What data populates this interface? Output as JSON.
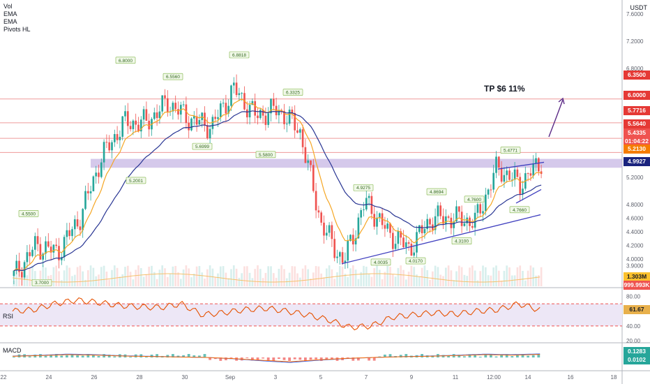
{
  "legend": [
    "Vol",
    "EMA",
    "EMA",
    "Pivots HL"
  ],
  "currency": "USDT",
  "annotation": "TP $6 11%",
  "price_axis": [
    "7.6000",
    "7.2000",
    "6.8000",
    "6.4000",
    "6.0000",
    "5.6000",
    "5.2000",
    "4.8000",
    "4.6000",
    "4.4000",
    "4.2000",
    "4.0000",
    "3.9000",
    "3.7600",
    "3.6000"
  ],
  "price_tags": [
    {
      "label": "6.3500",
      "color": "#e53935"
    },
    {
      "label": "6.0000",
      "color": "#e53935"
    },
    {
      "label": "5.7716",
      "color": "#e53935"
    },
    {
      "label": "5.5640",
      "color": "#e53935"
    },
    {
      "label": "5.4335",
      "color": "#ef5350"
    },
    {
      "label": "01:04:22",
      "color": "#ef5350"
    },
    {
      "label": "5.2130",
      "color": "#f57c00"
    },
    {
      "label": "4.9927",
      "color": "#1a237e"
    },
    {
      "label": "1.303M",
      "color": "#fbc02d"
    },
    {
      "label": "999.993K",
      "color": "#ef5350"
    }
  ],
  "time_axis": [
    "22",
    "24",
    "26",
    "28",
    "30",
    "Sep",
    "3",
    "5",
    "7",
    "9",
    "11",
    "12:00",
    "14",
    "16",
    "18"
  ],
  "rsi": {
    "label": "RSI",
    "axis": [
      "80.00",
      "40.00",
      "20.00"
    ],
    "value": "61.67"
  },
  "macd": {
    "label": "MACD",
    "values": [
      "0.1283",
      "0.0102"
    ]
  },
  "chart_data": {
    "type": "line",
    "title": "",
    "price_series": {
      "name": "Close",
      "x": [
        "Aug 22",
        "Aug 23",
        "Aug 24",
        "Aug 25",
        "Aug 26",
        "Aug 27",
        "Aug 28",
        "Aug 29",
        "Aug 30",
        "Aug 31",
        "Sep 1",
        "Sep 2",
        "Sep 3",
        "Sep 4",
        "Sep 5",
        "Sep 6",
        "Sep 7",
        "Sep 8",
        "Sep 9",
        "Sep 10",
        "Sep 11",
        "Sep 12",
        "Sep 13",
        "Sep 14",
        "Sep 14.5"
      ],
      "values": [
        3.75,
        4.2,
        4.1,
        4.6,
        5.5,
        6.0,
        6.0,
        6.3,
        6.05,
        5.95,
        6.5,
        6.1,
        6.2,
        5.9,
        4.5,
        3.95,
        4.85,
        4.4,
        4.15,
        4.6,
        4.6,
        4.55,
        5.35,
        5.1,
        5.43
      ]
    },
    "pivots": [
      "4.5500",
      "3.7000",
      "6.8000",
      "5.2001",
      "6.5560",
      "5.6999",
      "6.8818",
      "5.5800",
      "6.3325",
      "4.9275",
      "4.0035",
      "4.8694",
      "4.0170",
      "4.7600",
      "4.3100",
      "5.4771",
      "4.7660"
    ],
    "support_zone": [
      5.34,
      5.47
    ],
    "horizontal_levels": [
      6.35,
      6.0,
      5.7716,
      5.564
    ],
    "ylim": [
      3.6,
      7.7
    ],
    "rsi_series": [
      60,
      62,
      70,
      75,
      72,
      68,
      66,
      65,
      70,
      55,
      58,
      62,
      64,
      60,
      55,
      48,
      38,
      40,
      52,
      55,
      58,
      56,
      60,
      62,
      70,
      61.67
    ],
    "rsi_ylim": [
      20,
      90
    ],
    "macd_series": [
      0.05,
      0.08,
      0.12,
      0.1,
      0.06,
      0.04,
      0.02,
      0.0,
      -0.05,
      -0.12,
      -0.18,
      -0.1,
      -0.04,
      0.0,
      0.03,
      0.05,
      0.08,
      0.12,
      0.1,
      0.1283
    ]
  }
}
